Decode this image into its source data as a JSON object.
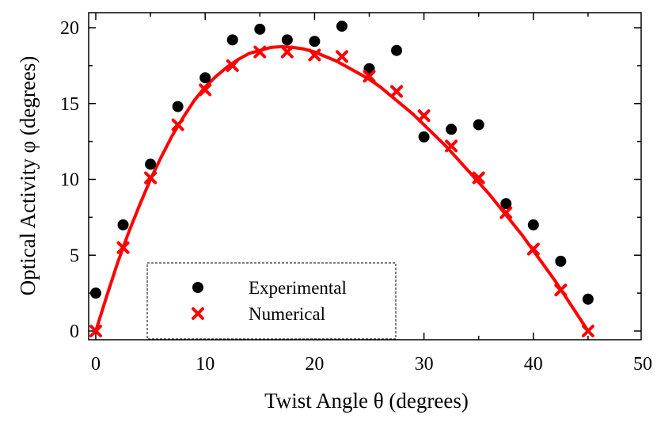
{
  "chart_data": {
    "type": "scatter",
    "xlabel": "Twist Angle θ (degrees)",
    "ylabel": "Optical Activity φ (degrees)",
    "xlim": [
      0,
      50
    ],
    "ylim": [
      0,
      20
    ],
    "x_ticks": [
      0,
      10,
      20,
      30,
      40,
      50
    ],
    "y_ticks": [
      0,
      5,
      10,
      15,
      20
    ],
    "grid": false,
    "legend_position": "bottom-left",
    "series": [
      {
        "name": "Experimental",
        "marker": "circle",
        "color": "#000000",
        "points": [
          [
            0,
            2.5
          ],
          [
            2.5,
            7.0
          ],
          [
            5,
            11.0
          ],
          [
            7.5,
            14.8
          ],
          [
            10,
            16.7
          ],
          [
            12.5,
            19.2
          ],
          [
            15,
            19.9
          ],
          [
            17.5,
            19.2
          ],
          [
            20,
            19.1
          ],
          [
            22.5,
            20.1
          ],
          [
            25,
            17.3
          ],
          [
            27.5,
            18.5
          ],
          [
            30,
            12.8
          ],
          [
            32.5,
            13.3
          ],
          [
            35,
            13.6
          ],
          [
            37.5,
            8.4
          ],
          [
            40,
            7.0
          ],
          [
            42.5,
            4.6
          ],
          [
            45,
            2.1
          ]
        ]
      },
      {
        "name": "Numerical",
        "marker": "cross",
        "color": "#ff0000",
        "points": [
          [
            0,
            0.0
          ],
          [
            2.5,
            5.5
          ],
          [
            5,
            10.1
          ],
          [
            7.5,
            13.6
          ],
          [
            10,
            15.9
          ],
          [
            12.5,
            17.5
          ],
          [
            15,
            18.4
          ],
          [
            17.5,
            18.4
          ],
          [
            20,
            18.2
          ],
          [
            22.5,
            18.1
          ],
          [
            25,
            16.8
          ],
          [
            27.5,
            15.8
          ],
          [
            30,
            14.2
          ],
          [
            32.5,
            12.2
          ],
          [
            35,
            10.1
          ],
          [
            37.5,
            7.8
          ],
          [
            40,
            5.4
          ],
          [
            42.5,
            2.7
          ],
          [
            45,
            0.0
          ]
        ],
        "curve": [
          [
            0,
            0.0
          ],
          [
            1,
            2.3
          ],
          [
            2,
            4.5
          ],
          [
            3,
            6.5
          ],
          [
            4,
            8.3
          ],
          [
            5,
            10.0
          ],
          [
            6,
            11.5
          ],
          [
            7,
            12.9
          ],
          [
            8,
            14.1
          ],
          [
            9,
            15.2
          ],
          [
            10,
            16.1
          ],
          [
            11,
            16.8
          ],
          [
            12,
            17.4
          ],
          [
            13,
            17.9
          ],
          [
            14,
            18.3
          ],
          [
            15,
            18.5
          ],
          [
            16,
            18.7
          ],
          [
            17,
            18.75
          ],
          [
            18,
            18.7
          ],
          [
            19,
            18.6
          ],
          [
            20,
            18.4
          ],
          [
            21,
            18.1
          ],
          [
            22,
            17.8
          ],
          [
            23,
            17.4
          ],
          [
            24,
            17.0
          ],
          [
            25,
            16.6
          ],
          [
            26,
            16.1
          ],
          [
            27,
            15.5
          ],
          [
            28,
            14.9
          ],
          [
            29,
            14.3
          ],
          [
            30,
            13.6
          ],
          [
            31,
            12.9
          ],
          [
            32,
            12.2
          ],
          [
            33,
            11.4
          ],
          [
            34,
            10.6
          ],
          [
            35,
            9.8
          ],
          [
            36,
            9.0
          ],
          [
            37,
            8.1
          ],
          [
            38,
            7.2
          ],
          [
            39,
            6.3
          ],
          [
            40,
            5.3
          ],
          [
            41,
            4.3
          ],
          [
            42,
            3.3
          ],
          [
            43,
            2.2
          ],
          [
            44,
            1.1
          ],
          [
            45,
            0.0
          ]
        ]
      }
    ],
    "colors": {
      "experimental": "#000000",
      "numerical": "#ff0000",
      "frame": "#000000"
    }
  }
}
